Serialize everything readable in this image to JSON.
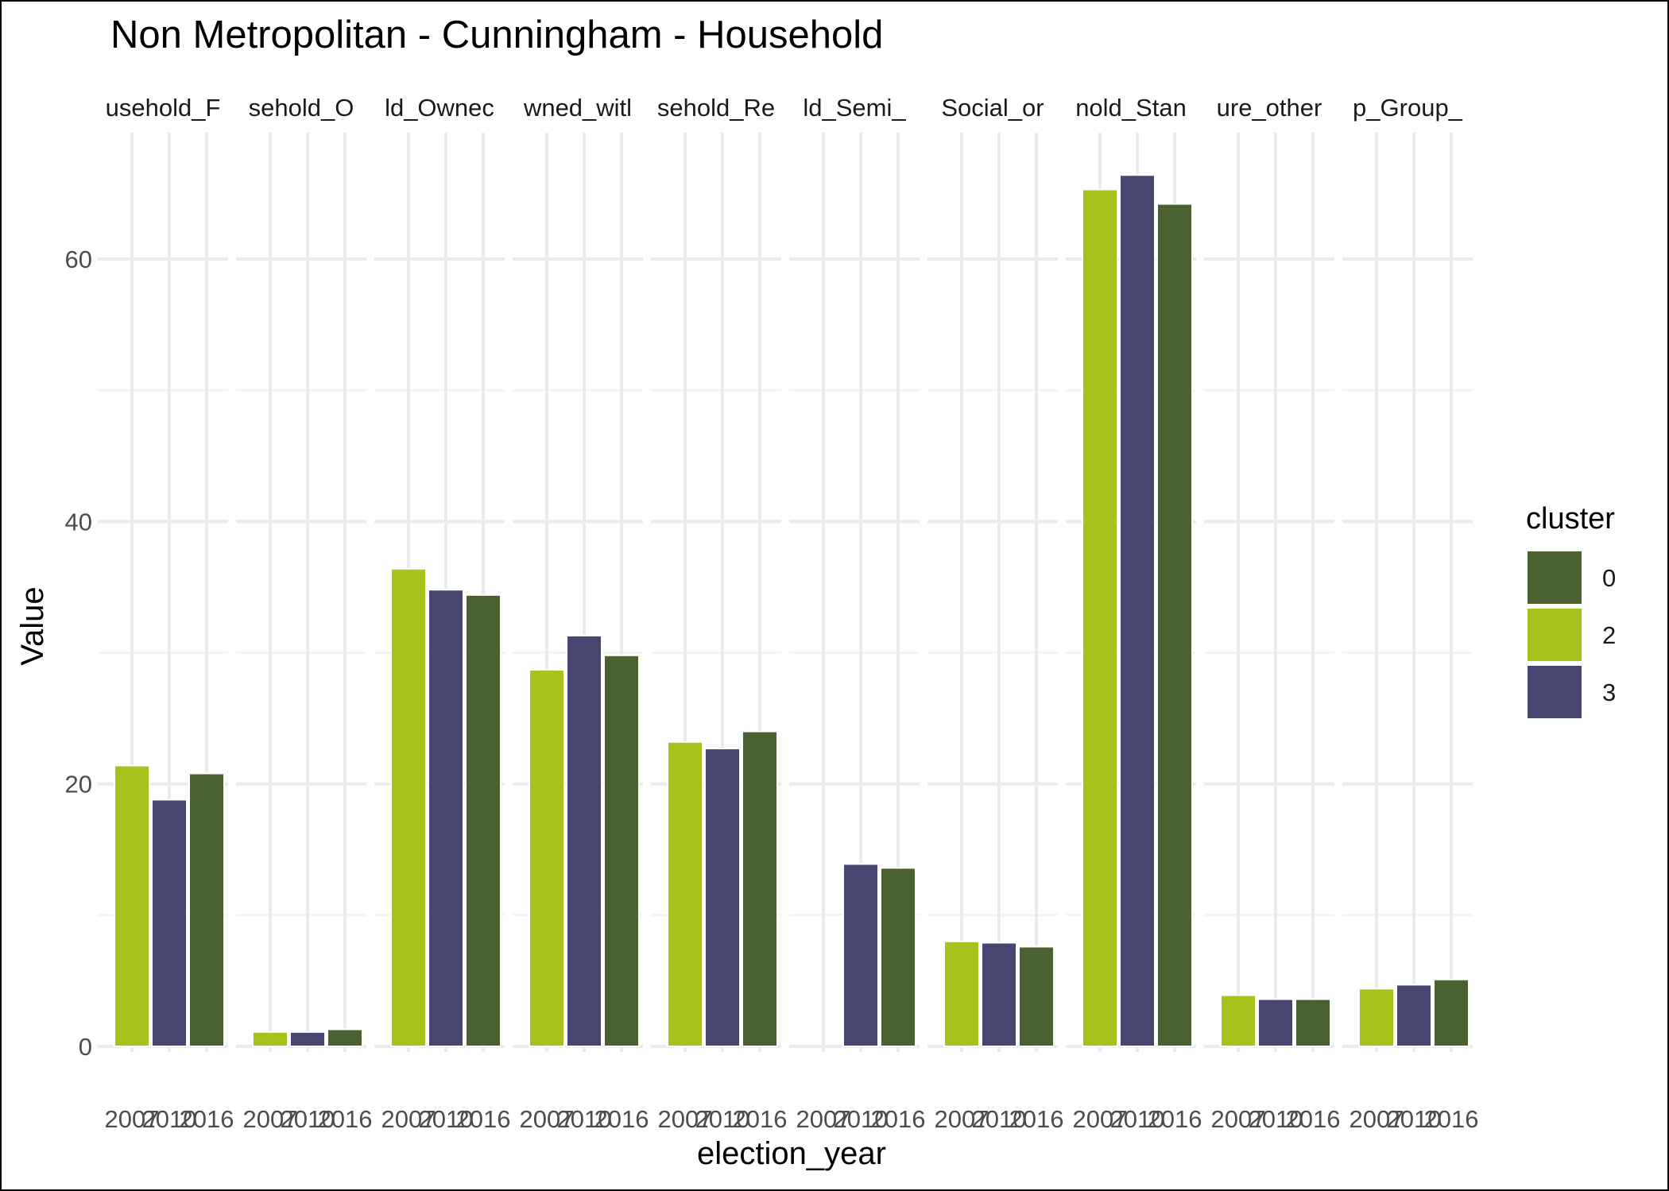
{
  "chart_data": {
    "type": "bar",
    "title": "Non Metropolitan - Cunningham - Household",
    "xlabel": "election_year",
    "ylabel": "Value",
    "ylim": [
      0,
      69
    ],
    "y_ticks": [
      0,
      20,
      40,
      60
    ],
    "grid": true,
    "facet_labels": [
      "usehold_F",
      "sehold_O",
      "ld_Ownec",
      "wned_witl",
      "sehold_Re",
      "ld_Semi_",
      "Social_or",
      "nold_Stan",
      "ure_other",
      "p_Group_"
    ],
    "categories": [
      "2007",
      "2010",
      "2016"
    ],
    "legend": {
      "title": "cluster",
      "position": "right",
      "entries": [
        {
          "label": "0",
          "color": "#4a6132"
        },
        {
          "label": "2",
          "color": "#a9c11c"
        },
        {
          "label": "3",
          "color": "#474673"
        }
      ]
    },
    "year_cluster": {
      "2007": "2",
      "2010": "3",
      "2016": "0"
    },
    "panels": [
      {
        "facet": "usehold_F",
        "values": [
          21.4,
          18.8,
          20.8
        ]
      },
      {
        "facet": "sehold_O",
        "values": [
          1.1,
          1.1,
          1.3
        ]
      },
      {
        "facet": "ld_Ownec",
        "values": [
          36.4,
          34.8,
          34.4
        ]
      },
      {
        "facet": "wned_witl",
        "values": [
          28.7,
          31.3,
          29.8
        ]
      },
      {
        "facet": "sehold_Re",
        "values": [
          23.2,
          22.7,
          24.0
        ]
      },
      {
        "facet": "ld_Semi_",
        "values": [
          null,
          13.9,
          13.6
        ]
      },
      {
        "facet": "Social_or",
        "values": [
          8.0,
          7.9,
          7.6
        ]
      },
      {
        "facet": "nold_Stan",
        "values": [
          65.3,
          66.4,
          64.2
        ]
      },
      {
        "facet": "ure_other",
        "values": [
          3.9,
          3.6,
          3.6
        ]
      },
      {
        "facet": "p_Group_",
        "values": [
          4.4,
          4.7,
          5.1
        ]
      }
    ]
  }
}
